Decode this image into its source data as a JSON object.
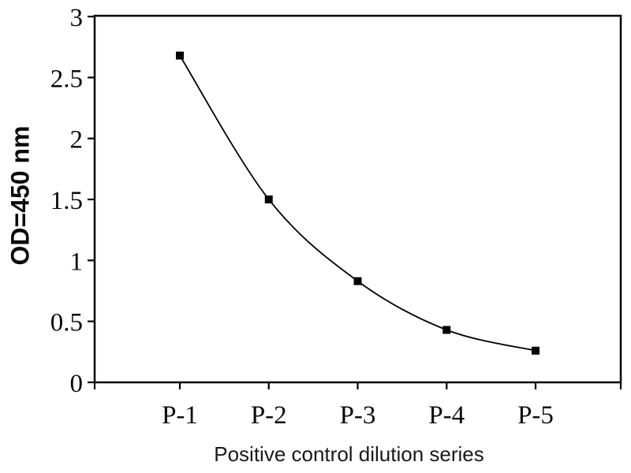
{
  "chart_data": {
    "type": "line",
    "subtype": "smooth-line-with-markers",
    "title": "",
    "xlabel": "Positive control dilution series",
    "ylabel": "OD=450 nm",
    "categories": [
      "P-1",
      "P-2",
      "P-3",
      "P-4",
      "P-5"
    ],
    "values": [
      2.68,
      1.5,
      0.83,
      0.43,
      0.26
    ],
    "ylim": [
      0,
      3
    ],
    "yticks": [
      0,
      0.5,
      1,
      1.5,
      2,
      2.5,
      3
    ],
    "ytick_labels": [
      "0",
      "0.5",
      "1",
      "1.5",
      "2",
      "2.5",
      "3"
    ],
    "grid": false,
    "frame": "full-box",
    "legend": "none",
    "line_color": "#000000",
    "marker": "filled-square",
    "marker_color": "#000000",
    "axis_color": "#000000",
    "background": "#ffffff"
  }
}
